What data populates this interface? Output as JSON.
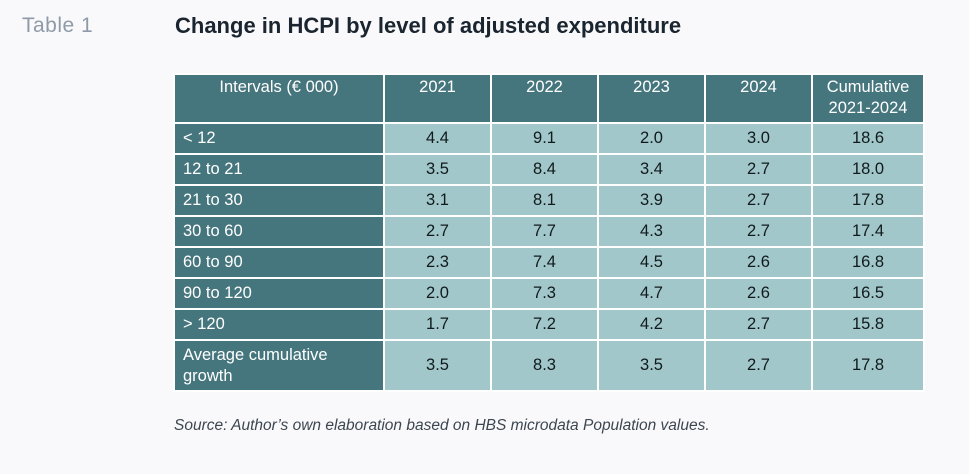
{
  "header": {
    "table_label": "Table 1",
    "title": "Change in HCPI by level of adjusted expenditure"
  },
  "table": {
    "columns": [
      "Intervals (€ 000)",
      "2021",
      "2022",
      "2023",
      "2024",
      "Cumulative 2021-2024"
    ],
    "rows": [
      {
        "label": "< 12",
        "values": [
          "4.4",
          "9.1",
          "2.0",
          "3.0",
          "18.6"
        ]
      },
      {
        "label": "12 to 21",
        "values": [
          "3.5",
          "8.4",
          "3.4",
          "2.7",
          "18.0"
        ]
      },
      {
        "label": "21 to 30",
        "values": [
          "3.1",
          "8.1",
          "3.9",
          "2.7",
          "17.8"
        ]
      },
      {
        "label": "30 to 60",
        "values": [
          "2.7",
          "7.7",
          "4.3",
          "2.7",
          "17.4"
        ]
      },
      {
        "label": "60 to 90",
        "values": [
          "2.3",
          "7.4",
          "4.5",
          "2.6",
          "16.8"
        ]
      },
      {
        "label": "90 to 120",
        "values": [
          "2.0",
          "7.3",
          "4.7",
          "2.6",
          "16.5"
        ]
      },
      {
        "label": "> 120",
        "values": [
          "1.7",
          "7.2",
          "4.2",
          "2.7",
          "15.8"
        ]
      },
      {
        "label": "Average cumulative growth",
        "values": [
          "3.5",
          "8.3",
          "3.5",
          "2.7",
          "17.8"
        ]
      }
    ]
  },
  "footer": {
    "source": "Source: Author’s own elaboration based on HBS microdata Population values."
  },
  "colors": {
    "header_fill": "#46767d",
    "cell_fill": "#a1c7ca",
    "background": "#f9f9fb"
  }
}
